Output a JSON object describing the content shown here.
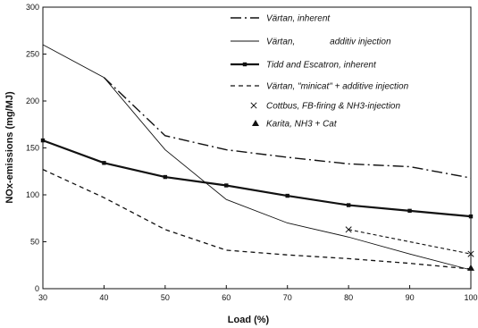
{
  "chart_data": {
    "type": "line",
    "xlabel": "Load  (%)",
    "ylabel": "NOx-emissions  (mg/MJ)",
    "xlim": [
      30,
      100
    ],
    "ylim": [
      0,
      300
    ],
    "xticks": [
      "30",
      "40",
      "50",
      "60",
      "70",
      "80",
      "90",
      "100"
    ],
    "yticks": [
      "0",
      "50",
      "100",
      "150",
      "200",
      "250",
      "300"
    ],
    "grid": false,
    "legend_position": "top-right",
    "series": [
      {
        "name": "Värtan, inherent",
        "style": "dashdot",
        "points": [
          [
            40,
            225
          ],
          [
            50,
            163
          ],
          [
            60,
            148
          ],
          [
            70,
            140
          ],
          [
            80,
            133
          ],
          [
            90,
            130
          ],
          [
            100,
            118
          ]
        ]
      },
      {
        "name": "Värtan,              additiv injection",
        "style": "thin",
        "points": [
          [
            30,
            260
          ],
          [
            40,
            225
          ],
          [
            50,
            148
          ],
          [
            60,
            95
          ],
          [
            70,
            70
          ],
          [
            80,
            55
          ],
          [
            90,
            37
          ],
          [
            100,
            20
          ]
        ]
      },
      {
        "name": "Tidd and Escatron, inherent",
        "style": "thick",
        "points": [
          [
            30,
            158
          ],
          [
            40,
            134
          ],
          [
            50,
            119
          ],
          [
            60,
            110
          ],
          [
            70,
            99
          ],
          [
            80,
            89
          ],
          [
            90,
            83
          ],
          [
            100,
            77
          ]
        ]
      },
      {
        "name": "Värtan, \"minicat\" + additive injection",
        "style": "dashed",
        "points": [
          [
            30,
            127
          ],
          [
            40,
            97
          ],
          [
            50,
            63
          ],
          [
            60,
            41
          ],
          [
            70,
            36
          ],
          [
            80,
            32
          ],
          [
            90,
            27
          ],
          [
            100,
            21
          ]
        ]
      },
      {
        "name": "Cottbus, FB-firing & NH3-injection",
        "style": "dashed-x",
        "points": [
          [
            80,
            63
          ],
          [
            100,
            37
          ]
        ]
      },
      {
        "name": "Karita, NH3 + Cat",
        "style": "triangle",
        "points": [
          [
            100,
            22
          ]
        ]
      }
    ]
  },
  "colors": {
    "ink": "#111111",
    "background": "#ffffff"
  }
}
